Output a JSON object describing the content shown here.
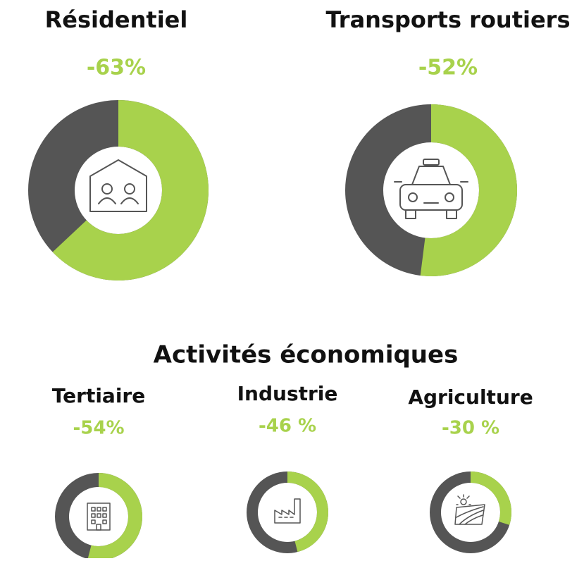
{
  "heading": "Activités économiques",
  "chart_data": [
    {
      "type": "donut",
      "title": "Résidentiel",
      "values": [
        -63
      ],
      "value_labels": [
        "-63%"
      ],
      "colors": [
        "#a8d24c",
        "#555555"
      ]
    },
    {
      "type": "donut",
      "title": "Transports routiers",
      "values": [
        -52
      ],
      "value_labels": [
        "-52%"
      ],
      "colors": [
        "#a8d24c",
        "#555555"
      ]
    },
    {
      "type": "donut",
      "title": "Tertiaire",
      "values": [
        -54
      ],
      "value_labels": [
        "-54%"
      ],
      "colors": [
        "#a8d24c",
        "#555555"
      ]
    },
    {
      "type": "donut",
      "title": "Industrie",
      "values": [
        -46
      ],
      "value_labels": [
        "-46 %"
      ],
      "colors": [
        "#a8d24c",
        "#555555"
      ]
    },
    {
      "type": "donut",
      "title": "Agriculture",
      "values": [
        -30
      ],
      "value_labels": [
        "-30 %"
      ],
      "colors": [
        "#a8d24c",
        "#555555"
      ]
    }
  ]
}
